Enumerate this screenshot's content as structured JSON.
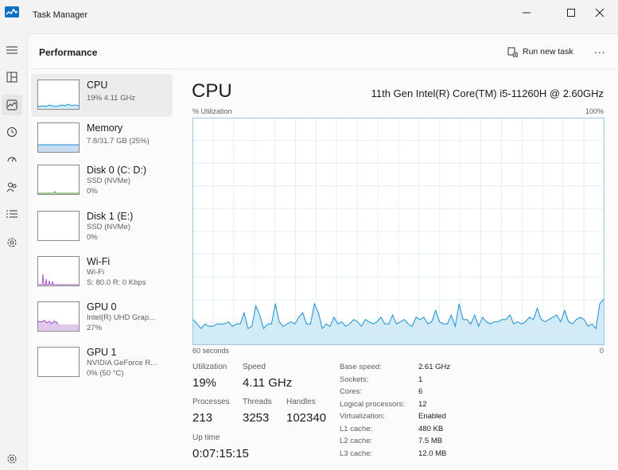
{
  "window": {
    "title": "Task Manager",
    "accent": "#0b71c5",
    "chart_line": "#1e8fd6",
    "chart_fill": "#d1ecf7",
    "purple": "#9b4fbf"
  },
  "nav": {
    "icons": [
      "hamburger-icon",
      "processes-icon",
      "performance-icon",
      "app-history-icon",
      "startup-apps-icon",
      "users-icon",
      "details-icon",
      "services-icon",
      "settings-icon"
    ],
    "active": "performance-icon"
  },
  "header": {
    "title": "Performance",
    "run_new_task": "Run new task",
    "more": "..."
  },
  "resources": [
    {
      "name": "CPU",
      "sub1": "19% 4.11 GHz",
      "sub2": "",
      "selected": true
    },
    {
      "name": "Memory",
      "sub1": "7.8/31.7 GB (25%)",
      "sub2": "",
      "selected": false
    },
    {
      "name": "Disk 0 (C: D:)",
      "sub1": "SSD (NVMe)",
      "sub2": "0%",
      "selected": false
    },
    {
      "name": "Disk 1 (E:)",
      "sub1": "SSD (NVMe)",
      "sub2": "0%",
      "selected": false
    },
    {
      "name": "Wi-Fi",
      "sub1": "Wi-Fi",
      "sub2": "S: 80.0  R: 0 Kbps",
      "selected": false
    },
    {
      "name": "GPU 0",
      "sub1": "Intel(R) UHD Grap...",
      "sub2": "27%",
      "selected": false
    },
    {
      "name": "GPU 1",
      "sub1": "NVIDIA GeForce R...",
      "sub2": "0% (50 °C)",
      "selected": false
    }
  ],
  "detail": {
    "title": "CPU",
    "model": "11th Gen Intel(R) Core(TM) i5-11260H @ 2.60GHz",
    "y_label": "% Utilization",
    "y_max_label": "100%",
    "x_left_label": "60 seconds",
    "x_right_label": "0"
  },
  "chart_data": {
    "type": "area",
    "title": "",
    "ylabel": "% Utilization",
    "xlabel": "60 seconds",
    "ylim": [
      0,
      100
    ],
    "x_range": [
      60,
      0
    ],
    "series": [
      {
        "values": [
          11,
          9,
          7,
          9,
          8,
          8,
          9,
          9,
          9,
          10,
          8,
          9,
          9,
          14,
          7,
          8,
          17,
          13,
          7,
          9,
          9,
          18,
          10,
          8,
          9,
          10,
          9,
          12,
          14,
          9,
          9,
          18,
          14,
          7,
          9,
          8,
          12,
          9,
          10,
          8,
          9,
          11,
          10,
          8,
          11,
          10,
          9,
          10,
          12,
          9,
          9,
          13,
          9,
          10,
          11,
          9,
          8,
          12,
          11,
          12,
          9,
          10,
          15,
          10,
          9,
          9,
          13,
          8,
          18,
          11,
          11,
          9,
          13,
          8,
          12,
          10,
          9,
          10,
          10,
          11,
          11,
          13,
          9,
          10,
          9,
          10,
          12,
          11,
          16,
          11,
          10,
          11,
          12,
          13,
          10,
          15,
          10,
          9,
          11,
          12,
          11,
          8,
          9,
          7,
          18,
          20
        ]
      }
    ]
  },
  "stats": {
    "utilization": {
      "label": "Utilization",
      "value": "19%"
    },
    "speed": {
      "label": "Speed",
      "value": "4.11 GHz"
    },
    "processes": {
      "label": "Processes",
      "value": "213"
    },
    "threads": {
      "label": "Threads",
      "value": "3253"
    },
    "handles": {
      "label": "Handles",
      "value": "102340"
    },
    "uptime": {
      "label": "Up time",
      "value": "0:07:15:15"
    }
  },
  "specs": [
    {
      "key": "Base speed:",
      "value": "2.61 GHz"
    },
    {
      "key": "Sockets:",
      "value": "1"
    },
    {
      "key": "Cores:",
      "value": "6"
    },
    {
      "key": "Logical processors:",
      "value": "12"
    },
    {
      "key": "Virtualization:",
      "value": "Enabled"
    },
    {
      "key": "L1 cache:",
      "value": "480 KB"
    },
    {
      "key": "L2 cache:",
      "value": "7.5 MB"
    },
    {
      "key": "L3 cache:",
      "value": "12.0 MB"
    }
  ]
}
